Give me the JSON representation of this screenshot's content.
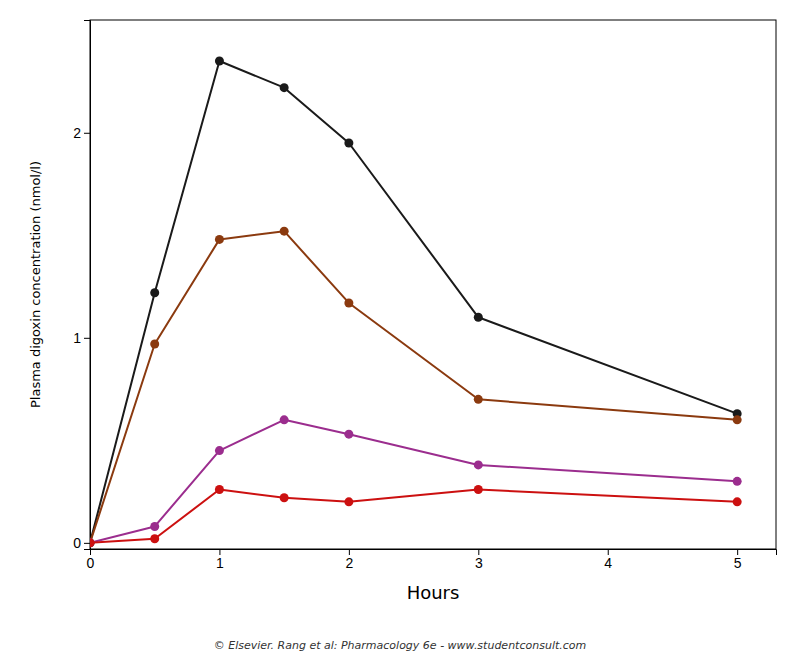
{
  "chart_data": {
    "type": "line",
    "xlabel": "Hours",
    "ylabel": "Plasma digoxin concentration (nmol/l)",
    "annotations": [
      "© Elsevier. Rang et al: Pharmacology 6e - www.studentconsult.com"
    ],
    "x": [
      0,
      0.5,
      1.0,
      1.5,
      2.0,
      3.0,
      5.0
    ],
    "xlim": [
      0,
      5.3
    ],
    "ylim": [
      -0.03,
      2.55
    ],
    "xticks": [
      0,
      1,
      2,
      3,
      4,
      5
    ],
    "yticks": [
      0,
      1,
      2
    ],
    "grid": false,
    "marker": "circle",
    "series": [
      {
        "color": "#1a1a1a",
        "values": [
          0,
          1.22,
          2.35,
          2.22,
          1.95,
          1.1,
          0.63
        ]
      },
      {
        "color": "#8B3A0F",
        "values": [
          0,
          0.97,
          1.48,
          1.52,
          1.17,
          0.7,
          0.6
        ]
      },
      {
        "color": "#9B2D8E",
        "values": [
          0,
          0.08,
          0.45,
          0.6,
          0.53,
          0.38,
          0.3
        ]
      },
      {
        "color": "#CC1010",
        "values": [
          0,
          0.02,
          0.26,
          0.22,
          0.2,
          0.26,
          0.2
        ]
      }
    ]
  }
}
